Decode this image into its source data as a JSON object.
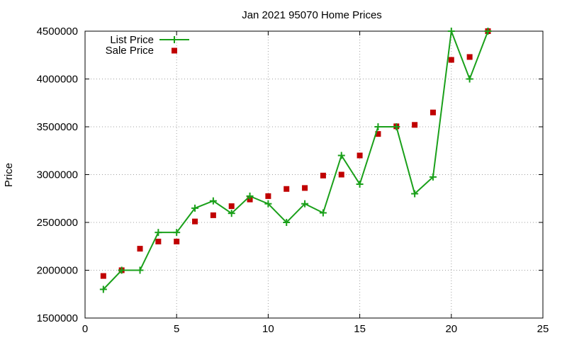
{
  "chart_data": {
    "type": "line",
    "title": "Jan 2021 95070 Home Prices",
    "xlabel": "",
    "ylabel": "Price",
    "xlim": [
      0,
      25
    ],
    "ylim": [
      1500000,
      4500000
    ],
    "xticks": [
      0,
      5,
      10,
      15,
      20,
      25
    ],
    "yticks": [
      1500000,
      2000000,
      2500000,
      3000000,
      3500000,
      4000000,
      4500000
    ],
    "xtick_labels": [
      "0",
      "5",
      "10",
      "15",
      "20",
      "25"
    ],
    "ytick_labels": [
      "1500000",
      "2000000",
      "2500000",
      "3000000",
      "3500000",
      "4000000",
      "4500000"
    ],
    "grid": true,
    "legend_position": "top-left",
    "series": [
      {
        "name": "List Price",
        "style": "line-with-plus-markers",
        "color": "#1aa01a",
        "x": [
          1,
          2,
          3,
          4,
          5,
          6,
          7,
          8,
          9,
          10,
          11,
          12,
          13,
          14,
          15,
          16,
          17,
          18,
          19,
          20,
          21,
          22
        ],
        "y": [
          1800000,
          2000000,
          2000000,
          2395000,
          2395000,
          2649000,
          2725000,
          2595000,
          2775000,
          2695000,
          2500000,
          2695000,
          2600000,
          3200000,
          2900000,
          3500000,
          3500000,
          2800000,
          2975000,
          4500000,
          4000000,
          4500000
        ]
      },
      {
        "name": "Sale Price",
        "style": "square-markers",
        "color": "#c00000",
        "x": [
          1,
          2,
          3,
          4,
          5,
          6,
          7,
          8,
          9,
          10,
          11,
          12,
          13,
          14,
          15,
          16,
          17,
          18,
          19,
          20,
          21,
          22
        ],
        "y": [
          1940000,
          2000000,
          2225000,
          2300000,
          2300000,
          2510000,
          2575000,
          2670000,
          2740000,
          2775000,
          2850000,
          2860000,
          2990000,
          3000000,
          3200000,
          3425000,
          3505000,
          3520000,
          3650000,
          4200000,
          4230000,
          4500000
        ]
      }
    ]
  }
}
